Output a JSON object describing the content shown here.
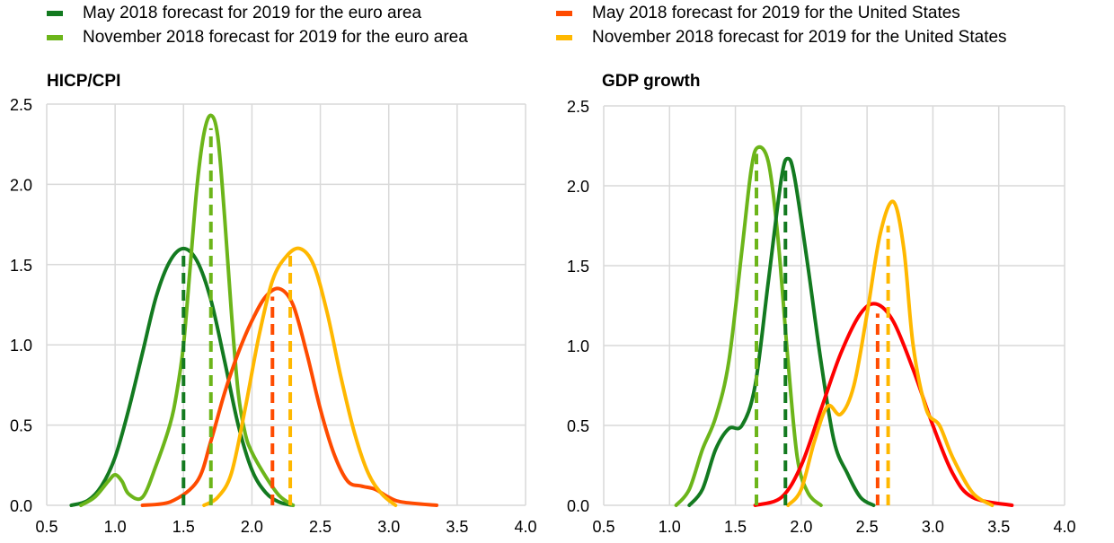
{
  "legend": [
    {
      "label": "May 2018 forecast for 2019 for the euro area",
      "color": "#137a20"
    },
    {
      "label": "November 2018 forecast for 2019 for the euro area",
      "color": "#6cb51a"
    },
    {
      "label": "May 2018 forecast for 2019 for the United States",
      "color": "#ff4b00"
    },
    {
      "label": "November 2018 forecast for 2019 for the United States",
      "color": "#ffb800"
    }
  ],
  "chart_data": [
    {
      "type": "line",
      "title": "HICP/CPI",
      "xlim": [
        0.5,
        4.0
      ],
      "ylim": [
        0,
        2.5
      ],
      "xticks": [
        "0.5",
        "1.0",
        "1.5",
        "2.0",
        "2.5",
        "3.0",
        "3.5",
        "4.0"
      ],
      "yticks": [
        "0.0",
        "0.5",
        "1.0",
        "1.5",
        "2.0",
        "2.5"
      ],
      "grid": true,
      "series": [
        {
          "name": "May 2018 forecast for 2019 for the euro area",
          "color": "#137a20",
          "median": 1.5,
          "median_height": 1.6,
          "points": [
            [
              0.68,
              0
            ],
            [
              0.8,
              0.03
            ],
            [
              0.9,
              0.12
            ],
            [
              1.0,
              0.3
            ],
            [
              1.1,
              0.6
            ],
            [
              1.2,
              0.95
            ],
            [
              1.3,
              1.3
            ],
            [
              1.4,
              1.52
            ],
            [
              1.5,
              1.6
            ],
            [
              1.6,
              1.52
            ],
            [
              1.7,
              1.28
            ],
            [
              1.8,
              0.9
            ],
            [
              1.9,
              0.5
            ],
            [
              2.0,
              0.22
            ],
            [
              2.1,
              0.08
            ],
            [
              2.2,
              0.02
            ],
            [
              2.3,
              0
            ]
          ]
        },
        {
          "name": "November 2018 forecast for 2019 for the euro area",
          "color": "#6cb51a",
          "median": 1.7,
          "median_height": 2.35,
          "points": [
            [
              0.75,
              0
            ],
            [
              0.85,
              0.05
            ],
            [
              0.95,
              0.15
            ],
            [
              1.0,
              0.19
            ],
            [
              1.05,
              0.15
            ],
            [
              1.1,
              0.07
            ],
            [
              1.2,
              0.05
            ],
            [
              1.3,
              0.25
            ],
            [
              1.4,
              0.5
            ],
            [
              1.45,
              0.7
            ],
            [
              1.5,
              1.0
            ],
            [
              1.55,
              1.5
            ],
            [
              1.6,
              2.0
            ],
            [
              1.65,
              2.32
            ],
            [
              1.7,
              2.43
            ],
            [
              1.75,
              2.3
            ],
            [
              1.8,
              1.8
            ],
            [
              1.85,
              1.2
            ],
            [
              1.9,
              0.7
            ],
            [
              1.95,
              0.45
            ],
            [
              2.0,
              0.33
            ],
            [
              2.1,
              0.18
            ],
            [
              2.2,
              0.06
            ],
            [
              2.3,
              0
            ]
          ]
        },
        {
          "name": "May 2018 forecast for 2019 for the United States",
          "color": "#ff4b00",
          "median": 2.15,
          "median_height": 1.3,
          "points": [
            [
              1.2,
              0
            ],
            [
              1.4,
              0.02
            ],
            [
              1.6,
              0.15
            ],
            [
              1.7,
              0.4
            ],
            [
              1.8,
              0.7
            ],
            [
              1.9,
              0.95
            ],
            [
              2.0,
              1.15
            ],
            [
              2.1,
              1.3
            ],
            [
              2.2,
              1.35
            ],
            [
              2.3,
              1.25
            ],
            [
              2.4,
              0.95
            ],
            [
              2.5,
              0.6
            ],
            [
              2.6,
              0.32
            ],
            [
              2.7,
              0.15
            ],
            [
              2.8,
              0.12
            ],
            [
              2.9,
              0.1
            ],
            [
              3.0,
              0.05
            ],
            [
              3.1,
              0.02
            ],
            [
              3.35,
              0
            ]
          ]
        },
        {
          "name": "November 2018 forecast for 2019 for the United States",
          "color": "#ffb800",
          "median": 2.28,
          "median_height": 1.57,
          "points": [
            [
              1.65,
              0
            ],
            [
              1.75,
              0.05
            ],
            [
              1.85,
              0.2
            ],
            [
              1.95,
              0.6
            ],
            [
              2.05,
              1.05
            ],
            [
              2.15,
              1.4
            ],
            [
              2.25,
              1.55
            ],
            [
              2.35,
              1.6
            ],
            [
              2.45,
              1.5
            ],
            [
              2.55,
              1.2
            ],
            [
              2.65,
              0.8
            ],
            [
              2.75,
              0.45
            ],
            [
              2.85,
              0.2
            ],
            [
              2.95,
              0.07
            ],
            [
              3.05,
              0
            ]
          ]
        }
      ]
    },
    {
      "type": "line",
      "title": "GDP growth",
      "xlim": [
        0.5,
        4.0
      ],
      "ylim": [
        0,
        2.5
      ],
      "xticks": [
        "0.5",
        "1.0",
        "1.5",
        "2.0",
        "2.5",
        "3.0",
        "3.5",
        "4.0"
      ],
      "yticks": [
        "0.0",
        "0.5",
        "1.0",
        "1.5",
        "2.0",
        "2.5"
      ],
      "grid": true,
      "series": [
        {
          "name": "November 2018 forecast for 2019 for the euro area",
          "color": "#6cb51a",
          "median": 1.66,
          "median_height": 2.2,
          "points": [
            [
              1.05,
              0
            ],
            [
              1.15,
              0.1
            ],
            [
              1.25,
              0.35
            ],
            [
              1.35,
              0.55
            ],
            [
              1.45,
              0.9
            ],
            [
              1.55,
              1.6
            ],
            [
              1.62,
              2.1
            ],
            [
              1.67,
              2.24
            ],
            [
              1.75,
              2.15
            ],
            [
              1.82,
              1.7
            ],
            [
              1.9,
              0.9
            ],
            [
              1.97,
              0.3
            ],
            [
              2.05,
              0.08
            ],
            [
              2.15,
              0
            ]
          ]
        },
        {
          "name": "May 2018 forecast for 2019 for the euro area",
          "color": "#137a20",
          "median": 1.88,
          "median_height": 2.1,
          "points": [
            [
              1.15,
              0
            ],
            [
              1.25,
              0.1
            ],
            [
              1.35,
              0.35
            ],
            [
              1.45,
              0.48
            ],
            [
              1.55,
              0.5
            ],
            [
              1.65,
              0.75
            ],
            [
              1.75,
              1.4
            ],
            [
              1.85,
              2.05
            ],
            [
              1.9,
              2.17
            ],
            [
              1.95,
              2.05
            ],
            [
              2.05,
              1.5
            ],
            [
              2.15,
              0.9
            ],
            [
              2.25,
              0.4
            ],
            [
              2.35,
              0.2
            ],
            [
              2.45,
              0.05
            ],
            [
              2.55,
              0
            ]
          ]
        },
        {
          "name": "May 2018 forecast for 2019 for the United States",
          "color": "#ff0000",
          "median": 2.58,
          "median_height": 1.2,
          "median_color": "#ff4b00",
          "points": [
            [
              1.65,
              0
            ],
            [
              1.85,
              0.05
            ],
            [
              2.0,
              0.25
            ],
            [
              2.15,
              0.6
            ],
            [
              2.3,
              0.95
            ],
            [
              2.45,
              1.2
            ],
            [
              2.57,
              1.26
            ],
            [
              2.7,
              1.15
            ],
            [
              2.85,
              0.85
            ],
            [
              3.0,
              0.5
            ],
            [
              3.15,
              0.2
            ],
            [
              3.3,
              0.05
            ],
            [
              3.6,
              0
            ]
          ]
        },
        {
          "name": "November 2018 forecast for 2019 for the United States",
          "color": "#ffb800",
          "median": 2.66,
          "median_height": 1.75,
          "points": [
            [
              1.9,
              0
            ],
            [
              2.0,
              0.1
            ],
            [
              2.1,
              0.4
            ],
            [
              2.2,
              0.62
            ],
            [
              2.3,
              0.57
            ],
            [
              2.4,
              0.75
            ],
            [
              2.5,
              1.2
            ],
            [
              2.6,
              1.7
            ],
            [
              2.7,
              1.9
            ],
            [
              2.78,
              1.6
            ],
            [
              2.85,
              1.0
            ],
            [
              2.95,
              0.6
            ],
            [
              3.05,
              0.5
            ],
            [
              3.15,
              0.3
            ],
            [
              3.3,
              0.08
            ],
            [
              3.45,
              0
            ]
          ]
        }
      ]
    }
  ]
}
